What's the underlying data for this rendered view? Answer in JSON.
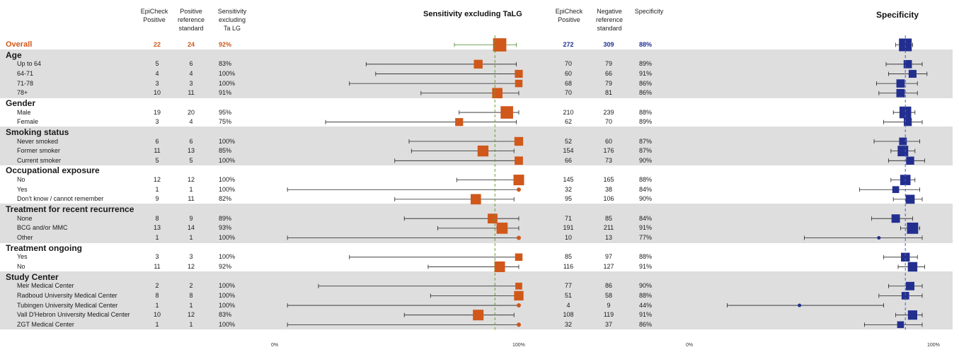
{
  "headers": {
    "epicheck_pos": [
      "EpiCheck",
      "Positive"
    ],
    "pos_ref": [
      "Positive",
      "reference",
      "standard"
    ],
    "sens_excl": [
      "Sensitivity",
      "excluding",
      "Ta LG"
    ],
    "epicheck_pos2": [
      "EpiCheck",
      "Positive"
    ],
    "neg_ref": [
      "Negative",
      "reference",
      "standard"
    ],
    "spec": [
      "Specificity"
    ]
  },
  "chart_data": [
    {
      "type": "forest",
      "title": "Sensitivity excluding TaLG",
      "xlim": [
        0,
        100
      ],
      "x_tick_labels": [
        "0%",
        "100%"
      ],
      "reference_line": 90,
      "color": "#d0581a"
    },
    {
      "type": "forest",
      "title": "Specificity",
      "xlim": [
        0,
        100
      ],
      "x_tick_labels": [
        "0%",
        "100%"
      ],
      "reference_line": 88,
      "color": "#232f8f"
    }
  ],
  "rows": [
    {
      "kind": "overall",
      "label": "Overall",
      "pos": "22",
      "posref": "24",
      "sens": "92%",
      "s_est": 92,
      "s_lo": 73,
      "s_hi": 99,
      "s_w": 24,
      "neg": "272",
      "negref": "309",
      "spec": "88%",
      "p_est": 88,
      "p_lo": 84,
      "p_hi": 91,
      "p_w": 309
    },
    {
      "kind": "group",
      "label": "Age",
      "band": 1
    },
    {
      "kind": "item",
      "band": 1,
      "label": "Up to 64",
      "pos": "5",
      "posref": "6",
      "sens": "83%",
      "s_est": 83,
      "s_lo": 36,
      "s_hi": 99,
      "s_w": 6,
      "neg": "70",
      "negref": "79",
      "spec": "89%",
      "p_est": 89,
      "p_lo": 80,
      "p_hi": 95,
      "p_w": 79
    },
    {
      "kind": "item",
      "band": 1,
      "label": "64-71",
      "pos": "4",
      "posref": "4",
      "sens": "100%",
      "s_est": 100,
      "s_lo": 40,
      "s_hi": 100,
      "s_w": 4,
      "neg": "60",
      "negref": "66",
      "spec": "91%",
      "p_est": 91,
      "p_lo": 81,
      "p_hi": 97,
      "p_w": 66
    },
    {
      "kind": "item",
      "band": 1,
      "label": "71-78",
      "pos": "3",
      "posref": "3",
      "sens": "100%",
      "s_est": 100,
      "s_lo": 29,
      "s_hi": 100,
      "s_w": 3,
      "neg": "68",
      "negref": "79",
      "spec": "86%",
      "p_est": 86,
      "p_lo": 76,
      "p_hi": 93,
      "p_w": 79
    },
    {
      "kind": "item",
      "band": 1,
      "label": "78+",
      "pos": "10",
      "posref": "11",
      "sens": "91%",
      "s_est": 91,
      "s_lo": 59,
      "s_hi": 100,
      "s_w": 11,
      "neg": "70",
      "negref": "81",
      "spec": "86%",
      "p_est": 86,
      "p_lo": 77,
      "p_hi": 93,
      "p_w": 81
    },
    {
      "kind": "group",
      "label": "Gender",
      "band": 0
    },
    {
      "kind": "item",
      "band": 0,
      "label": "Male",
      "pos": "19",
      "posref": "20",
      "sens": "95%",
      "s_est": 95,
      "s_lo": 75,
      "s_hi": 100,
      "s_w": 20,
      "neg": "210",
      "negref": "239",
      "spec": "88%",
      "p_est": 88,
      "p_lo": 83,
      "p_hi": 92,
      "p_w": 239
    },
    {
      "kind": "item",
      "band": 0,
      "label": "Female",
      "pos": "3",
      "posref": "4",
      "sens": "75%",
      "s_est": 75,
      "s_lo": 19,
      "s_hi": 99,
      "s_w": 4,
      "neg": "62",
      "negref": "70",
      "spec": "89%",
      "p_est": 89,
      "p_lo": 79,
      "p_hi": 95,
      "p_w": 70
    },
    {
      "kind": "group",
      "label": "Smoking status",
      "band": 1
    },
    {
      "kind": "item",
      "band": 1,
      "label": "Never smoked",
      "pos": "6",
      "posref": "6",
      "sens": "100%",
      "s_est": 100,
      "s_lo": 54,
      "s_hi": 100,
      "s_w": 6,
      "neg": "52",
      "negref": "60",
      "spec": "87%",
      "p_est": 87,
      "p_lo": 75,
      "p_hi": 94,
      "p_w": 60
    },
    {
      "kind": "item",
      "band": 1,
      "label": "Former smoker",
      "pos": "11",
      "posref": "13",
      "sens": "85%",
      "s_est": 85,
      "s_lo": 55,
      "s_hi": 98,
      "s_w": 13,
      "neg": "154",
      "negref": "176",
      "spec": "87%",
      "p_est": 87,
      "p_lo": 82,
      "p_hi": 92,
      "p_w": 176
    },
    {
      "kind": "item",
      "band": 1,
      "label": "Current smoker",
      "pos": "5",
      "posref": "5",
      "sens": "100%",
      "s_est": 100,
      "s_lo": 48,
      "s_hi": 100,
      "s_w": 5,
      "neg": "66",
      "negref": "73",
      "spec": "90%",
      "p_est": 90,
      "p_lo": 81,
      "p_hi": 96,
      "p_w": 73
    },
    {
      "kind": "group",
      "label": "Occupational exposure",
      "band": 0
    },
    {
      "kind": "item",
      "band": 0,
      "label": "No",
      "pos": "12",
      "posref": "12",
      "sens": "100%",
      "s_est": 100,
      "s_lo": 74,
      "s_hi": 100,
      "s_w": 12,
      "neg": "145",
      "negref": "165",
      "spec": "88%",
      "p_est": 88,
      "p_lo": 82,
      "p_hi": 92,
      "p_w": 165
    },
    {
      "kind": "item",
      "band": 0,
      "label": "Yes",
      "pos": "1",
      "posref": "1",
      "sens": "100%",
      "s_est": 100,
      "s_lo": 3,
      "s_hi": 100,
      "s_w": 1,
      "neg": "32",
      "negref": "38",
      "spec": "84%",
      "p_est": 84,
      "p_lo": 69,
      "p_hi": 94,
      "p_w": 38
    },
    {
      "kind": "item",
      "band": 0,
      "label": "Don't know / cannot remember",
      "pos": "9",
      "posref": "11",
      "sens": "82%",
      "s_est": 82,
      "s_lo": 48,
      "s_hi": 98,
      "s_w": 11,
      "neg": "95",
      "negref": "106",
      "spec": "90%",
      "p_est": 90,
      "p_lo": 83,
      "p_hi": 95,
      "p_w": 106
    },
    {
      "kind": "group",
      "label": "Treatment for recent recurrence",
      "band": 1
    },
    {
      "kind": "item",
      "band": 1,
      "label": "None",
      "pos": "8",
      "posref": "9",
      "sens": "89%",
      "s_est": 89,
      "s_lo": 52,
      "s_hi": 100,
      "s_w": 9,
      "neg": "71",
      "negref": "85",
      "spec": "84%",
      "p_est": 84,
      "p_lo": 74,
      "p_hi": 91,
      "p_w": 85
    },
    {
      "kind": "item",
      "band": 1,
      "label": "BCG and/or MMC",
      "pos": "13",
      "posref": "14",
      "sens": "93%",
      "s_est": 93,
      "s_lo": 66,
      "s_hi": 100,
      "s_w": 14,
      "neg": "191",
      "negref": "211",
      "spec": "91%",
      "p_est": 91,
      "p_lo": 86,
      "p_hi": 94,
      "p_w": 211
    },
    {
      "kind": "item",
      "band": 1,
      "label": "Other",
      "pos": "1",
      "posref": "1",
      "sens": "100%",
      "s_est": 100,
      "s_lo": 3,
      "s_hi": 100,
      "s_w": 1,
      "neg": "10",
      "negref": "13",
      "spec": "77%",
      "p_est": 77,
      "p_lo": 46,
      "p_hi": 95,
      "p_w": 13
    },
    {
      "kind": "group",
      "label": "Treatment ongoing",
      "band": 0
    },
    {
      "kind": "item",
      "band": 0,
      "label": "Yes",
      "pos": "3",
      "posref": "3",
      "sens": "100%",
      "s_est": 100,
      "s_lo": 29,
      "s_hi": 100,
      "s_w": 3,
      "neg": "85",
      "negref": "97",
      "spec": "88%",
      "p_est": 88,
      "p_lo": 79,
      "p_hi": 93,
      "p_w": 97
    },
    {
      "kind": "item",
      "band": 0,
      "label": "No",
      "pos": "11",
      "posref": "12",
      "sens": "92%",
      "s_est": 92,
      "s_lo": 62,
      "s_hi": 100,
      "s_w": 12,
      "neg": "116",
      "negref": "127",
      "spec": "91%",
      "p_est": 91,
      "p_lo": 85,
      "p_hi": 96,
      "p_w": 127
    },
    {
      "kind": "group",
      "label": "Study Center",
      "band": 1
    },
    {
      "kind": "item",
      "band": 1,
      "label": "Meir Medical Center",
      "pos": "2",
      "posref": "2",
      "sens": "100%",
      "s_est": 100,
      "s_lo": 16,
      "s_hi": 100,
      "s_w": 2,
      "neg": "77",
      "negref": "86",
      "spec": "90%",
      "p_est": 90,
      "p_lo": 81,
      "p_hi": 95,
      "p_w": 86
    },
    {
      "kind": "item",
      "band": 1,
      "label": "Radboud University Medical Center",
      "pos": "8",
      "posref": "8",
      "sens": "100%",
      "s_est": 100,
      "s_lo": 63,
      "s_hi": 100,
      "s_w": 8,
      "neg": "51",
      "negref": "58",
      "spec": "88%",
      "p_est": 88,
      "p_lo": 77,
      "p_hi": 95,
      "p_w": 58
    },
    {
      "kind": "item",
      "band": 1,
      "label": "Tubingen University Medical Center",
      "pos": "1",
      "posref": "1",
      "sens": "100%",
      "s_est": 100,
      "s_lo": 3,
      "s_hi": 100,
      "s_w": 1,
      "neg": "4",
      "negref": "9",
      "spec": "44%",
      "p_est": 44,
      "p_lo": 14,
      "p_hi": 79,
      "p_w": 9
    },
    {
      "kind": "item",
      "band": 1,
      "label": "Vall D'Hebron University Medical Center",
      "pos": "10",
      "posref": "12",
      "sens": "83%",
      "s_est": 83,
      "s_lo": 52,
      "s_hi": 98,
      "s_w": 12,
      "neg": "108",
      "negref": "119",
      "spec": "91%",
      "p_est": 91,
      "p_lo": 84,
      "p_hi": 95,
      "p_w": 119
    },
    {
      "kind": "item",
      "band": 1,
      "label": "ZGT Medical Center",
      "pos": "1",
      "posref": "1",
      "sens": "100%",
      "s_est": 100,
      "s_lo": 3,
      "s_hi": 100,
      "s_w": 1,
      "neg": "32",
      "negref": "37",
      "spec": "86%",
      "p_est": 86,
      "p_lo": 71,
      "p_hi": 95,
      "p_w": 37
    }
  ]
}
